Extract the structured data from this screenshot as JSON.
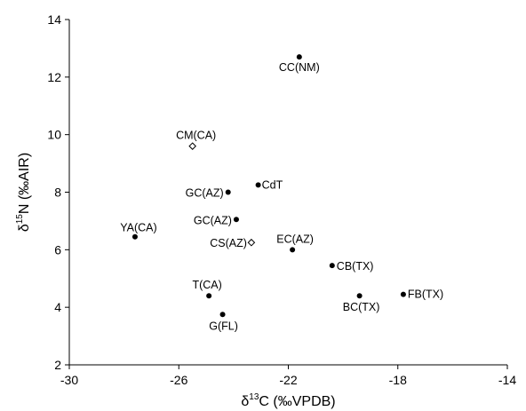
{
  "chart_data": {
    "type": "scatter",
    "xlabel_parts": [
      "δ",
      "13",
      "C (‰VPDB)"
    ],
    "ylabel_parts": [
      "δ",
      "15",
      "N (‰AIR)"
    ],
    "xlim": [
      -30,
      -14
    ],
    "ylim": [
      2,
      14
    ],
    "xticks": [
      -30,
      -26,
      -22,
      -18,
      -14
    ],
    "yticks": [
      2,
      4,
      6,
      8,
      10,
      12,
      14
    ],
    "grid": false,
    "points": [
      {
        "label": "CC(NM)",
        "x": -21.6,
        "y": 12.7,
        "marker": "filled"
      },
      {
        "label": "CM(CA)",
        "x": -25.5,
        "y": 9.6,
        "marker": "open-diamond"
      },
      {
        "label": "CdT",
        "x": -23.1,
        "y": 8.25,
        "marker": "filled"
      },
      {
        "label": "GC(AZ)",
        "x": -24.2,
        "y": 8.0,
        "marker": "filled"
      },
      {
        "label": "GC(AZ)",
        "x": -23.9,
        "y": 7.05,
        "marker": "filled"
      },
      {
        "label": "YA(CA)",
        "x": -27.6,
        "y": 6.45,
        "marker": "filled"
      },
      {
        "label": "CS(AZ)",
        "x": -23.35,
        "y": 6.25,
        "marker": "open-diamond"
      },
      {
        "label": "EC(AZ)",
        "x": -21.85,
        "y": 6.0,
        "marker": "filled"
      },
      {
        "label": "CB(TX)",
        "x": -20.4,
        "y": 5.45,
        "marker": "filled"
      },
      {
        "label": "FB(TX)",
        "x": -17.8,
        "y": 4.45,
        "marker": "filled"
      },
      {
        "label": "BC(TX)",
        "x": -19.4,
        "y": 4.4,
        "marker": "filled"
      },
      {
        "label": "T(CA)",
        "x": -24.9,
        "y": 4.4,
        "marker": "filled"
      },
      {
        "label": "G(FL)",
        "x": -24.4,
        "y": 3.75,
        "marker": "filled"
      }
    ]
  }
}
